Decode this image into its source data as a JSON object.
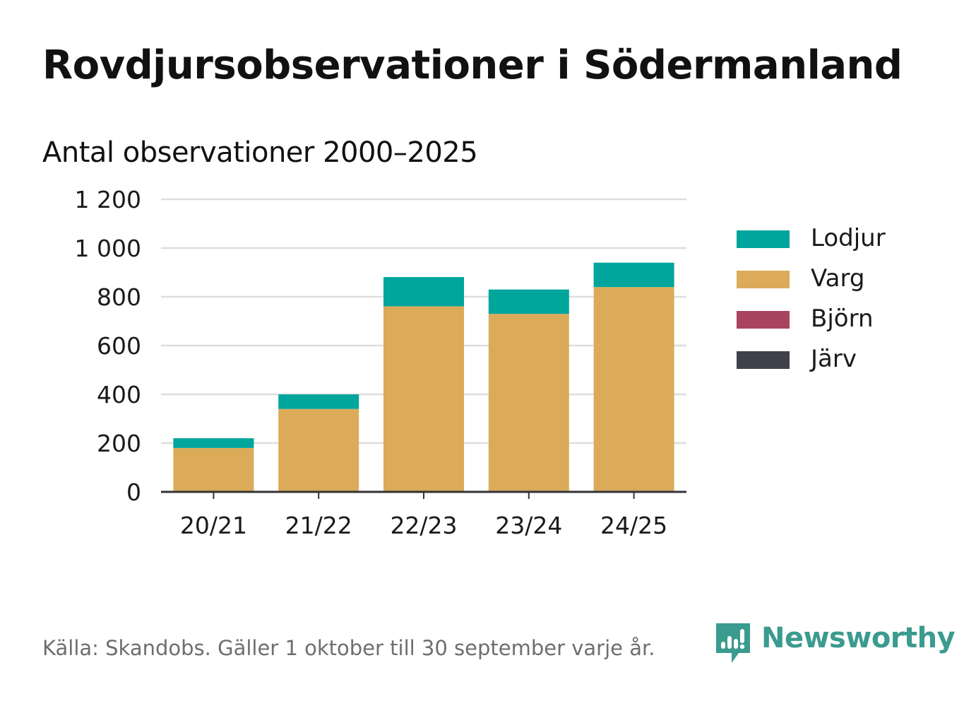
{
  "title": "Rovdjursobservationer i Södermanland",
  "subtitle": "Antal observationer 2000–2025",
  "source": "Källa: Skandobs. Gäller 1 oktober till 30 september varje år.",
  "brand": {
    "name": "Newsworthy",
    "logo_icon": "newsworthy-chart-bubble-icon",
    "color": "#3a9b8e"
  },
  "chart_data": {
    "type": "bar",
    "stacked": true,
    "categories": [
      "20/21",
      "21/22",
      "22/23",
      "23/24",
      "24/25"
    ],
    "series": [
      {
        "name": "Järv",
        "color": "#403f4c",
        "values": [
          0,
          0,
          0,
          0,
          0
        ]
      },
      {
        "name": "Björn",
        "color": "#a8445e",
        "values": [
          0,
          0,
          1,
          5,
          5
        ]
      },
      {
        "name": "Varg",
        "color": "#dbab5a",
        "values": [
          180,
          340,
          760,
          725,
          835
        ]
      },
      {
        "name": "Lodjur",
        "color": "#00a59b",
        "values": [
          40,
          60,
          120,
          100,
          100
        ]
      }
    ],
    "legend_order": [
      "Lodjur",
      "Varg",
      "Björn",
      "Järv"
    ],
    "yticks": [
      0,
      200,
      400,
      600,
      800,
      1000,
      1200
    ],
    "ytick_labels": [
      "0",
      "200",
      "400",
      "600",
      "800",
      "1 000",
      "1 200"
    ],
    "ylim": [
      0,
      1200
    ],
    "grid": true,
    "legend_position": "right",
    "xlabel": "",
    "ylabel": ""
  }
}
